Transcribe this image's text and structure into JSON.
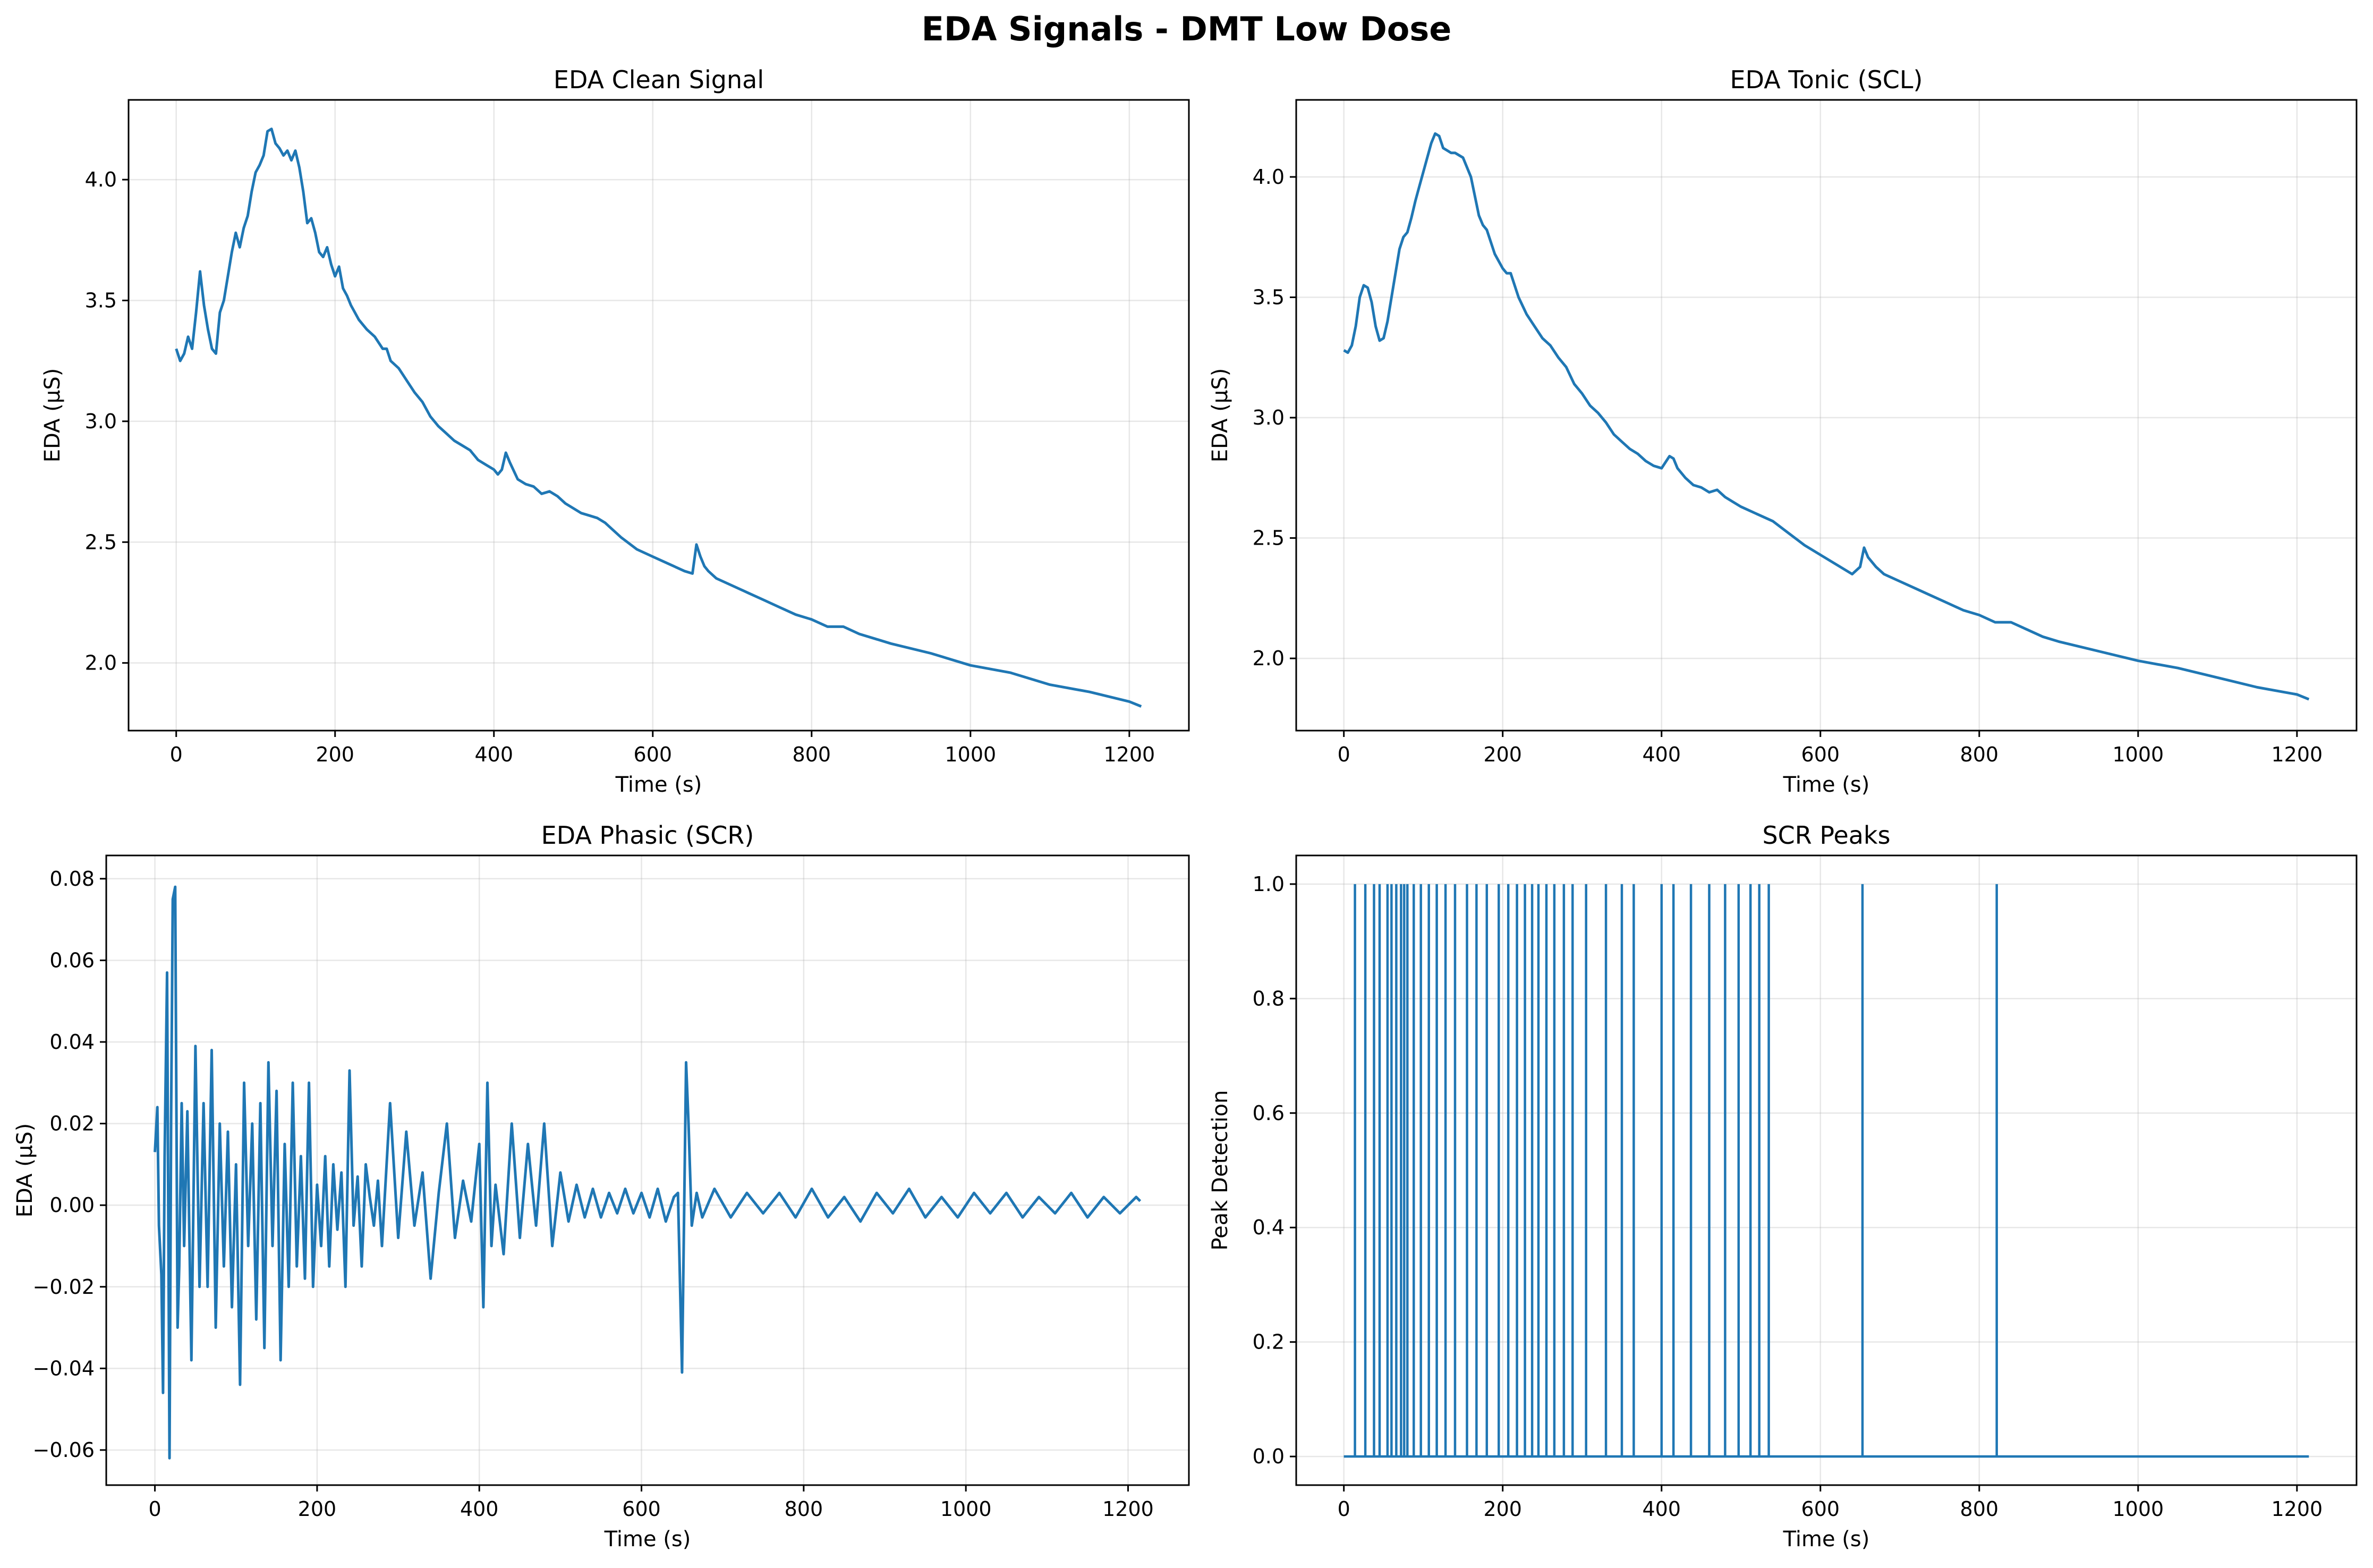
{
  "figure": {
    "suptitle": "EDA Signals - DMT Low Dose",
    "line_color": "#1f77b4"
  },
  "chart_data": [
    {
      "type": "line",
      "title": "EDA Clean Signal",
      "xlabel": "Time (s)",
      "ylabel": "EDA (µS)",
      "xlim": [
        -60,
        1275
      ],
      "ylim": [
        1.72,
        4.33
      ],
      "xticks": [
        0,
        200,
        400,
        600,
        800,
        1000,
        1200
      ],
      "yticks": [
        2.0,
        2.5,
        3.0,
        3.5,
        4.0
      ],
      "ytick_labels": [
        "2.0",
        "2.5",
        "3.0",
        "3.5",
        "4.0"
      ],
      "grid": true,
      "series": [
        {
          "x": [
            0,
            5,
            10,
            15,
            20,
            25,
            30,
            35,
            40,
            45,
            50,
            55,
            60,
            65,
            70,
            75,
            80,
            85,
            90,
            95,
            100,
            105,
            110,
            115,
            120,
            125,
            130,
            135,
            140,
            145,
            150,
            155,
            160,
            165,
            170,
            175,
            180,
            185,
            190,
            195,
            200,
            205,
            210,
            215,
            220,
            225,
            230,
            240,
            250,
            260,
            265,
            270,
            280,
            290,
            300,
            310,
            320,
            330,
            340,
            350,
            360,
            370,
            380,
            390,
            400,
            405,
            410,
            415,
            420,
            430,
            440,
            450,
            460,
            470,
            480,
            490,
            500,
            510,
            520,
            530,
            540,
            560,
            580,
            600,
            620,
            640,
            650,
            655,
            660,
            665,
            670,
            680,
            700,
            720,
            740,
            760,
            780,
            800,
            820,
            840,
            860,
            880,
            900,
            950,
            1000,
            1050,
            1100,
            1150,
            1200,
            1215
          ],
          "y": [
            3.3,
            3.25,
            3.28,
            3.35,
            3.3,
            3.45,
            3.62,
            3.48,
            3.38,
            3.3,
            3.28,
            3.45,
            3.5,
            3.6,
            3.7,
            3.78,
            3.72,
            3.8,
            3.85,
            3.95,
            4.03,
            4.06,
            4.1,
            4.2,
            4.21,
            4.15,
            4.13,
            4.1,
            4.12,
            4.08,
            4.12,
            4.05,
            3.95,
            3.82,
            3.84,
            3.78,
            3.7,
            3.68,
            3.72,
            3.65,
            3.6,
            3.64,
            3.55,
            3.52,
            3.48,
            3.45,
            3.42,
            3.38,
            3.35,
            3.3,
            3.3,
            3.25,
            3.22,
            3.17,
            3.12,
            3.08,
            3.02,
            2.98,
            2.95,
            2.92,
            2.9,
            2.88,
            2.84,
            2.82,
            2.8,
            2.78,
            2.8,
            2.87,
            2.83,
            2.76,
            2.74,
            2.73,
            2.7,
            2.71,
            2.69,
            2.66,
            2.64,
            2.62,
            2.61,
            2.6,
            2.58,
            2.52,
            2.47,
            2.44,
            2.41,
            2.38,
            2.37,
            2.49,
            2.44,
            2.4,
            2.38,
            2.35,
            2.32,
            2.29,
            2.26,
            2.23,
            2.2,
            2.18,
            2.15,
            2.15,
            2.12,
            2.1,
            2.08,
            2.04,
            1.99,
            1.96,
            1.91,
            1.88,
            1.84,
            1.82
          ]
        }
      ]
    },
    {
      "type": "line",
      "title": "EDA Tonic (SCL)",
      "xlabel": "Time (s)",
      "ylabel": "EDA (µS)",
      "xlim": [
        -60,
        1275
      ],
      "ylim": [
        1.7,
        4.32
      ],
      "xticks": [
        0,
        200,
        400,
        600,
        800,
        1000,
        1200
      ],
      "yticks": [
        2.0,
        2.5,
        3.0,
        3.5,
        4.0
      ],
      "ytick_labels": [
        "2.0",
        "2.5",
        "3.0",
        "3.5",
        "4.0"
      ],
      "grid": true,
      "series": [
        {
          "x": [
            0,
            5,
            10,
            15,
            20,
            25,
            30,
            35,
            40,
            45,
            50,
            55,
            60,
            65,
            70,
            75,
            80,
            85,
            90,
            95,
            100,
            105,
            110,
            115,
            120,
            125,
            130,
            135,
            140,
            150,
            160,
            165,
            170,
            175,
            180,
            190,
            200,
            205,
            210,
            220,
            230,
            240,
            250,
            260,
            270,
            280,
            290,
            300,
            310,
            320,
            330,
            340,
            350,
            360,
            370,
            380,
            390,
            400,
            410,
            415,
            420,
            430,
            440,
            450,
            460,
            470,
            480,
            490,
            500,
            520,
            540,
            560,
            580,
            600,
            620,
            640,
            650,
            655,
            660,
            670,
            680,
            700,
            720,
            740,
            760,
            780,
            800,
            820,
            840,
            860,
            880,
            900,
            950,
            1000,
            1050,
            1100,
            1150,
            1200,
            1215
          ],
          "y": [
            3.28,
            3.27,
            3.3,
            3.38,
            3.5,
            3.55,
            3.54,
            3.48,
            3.38,
            3.32,
            3.33,
            3.4,
            3.5,
            3.6,
            3.7,
            3.75,
            3.77,
            3.83,
            3.9,
            3.96,
            4.02,
            4.08,
            4.14,
            4.18,
            4.17,
            4.12,
            4.11,
            4.1,
            4.1,
            4.08,
            4.0,
            3.92,
            3.84,
            3.8,
            3.78,
            3.68,
            3.62,
            3.6,
            3.6,
            3.5,
            3.43,
            3.38,
            3.33,
            3.3,
            3.25,
            3.21,
            3.14,
            3.1,
            3.05,
            3.02,
            2.98,
            2.93,
            2.9,
            2.87,
            2.85,
            2.82,
            2.8,
            2.79,
            2.84,
            2.83,
            2.79,
            2.75,
            2.72,
            2.71,
            2.69,
            2.7,
            2.67,
            2.65,
            2.63,
            2.6,
            2.57,
            2.52,
            2.47,
            2.43,
            2.39,
            2.35,
            2.38,
            2.46,
            2.42,
            2.38,
            2.35,
            2.32,
            2.29,
            2.26,
            2.23,
            2.2,
            2.18,
            2.15,
            2.15,
            2.12,
            2.09,
            2.07,
            2.03,
            1.99,
            1.96,
            1.92,
            1.88,
            1.85,
            1.83
          ]
        }
      ]
    },
    {
      "type": "line",
      "title": "EDA Phasic (SCR)",
      "xlabel": "Time (s)",
      "ylabel": "EDA (µS)",
      "xlim": [
        -60,
        1275
      ],
      "ylim": [
        -0.0686,
        0.0857
      ],
      "xticks": [
        0,
        200,
        400,
        600,
        800,
        1000,
        1200
      ],
      "yticks": [
        -0.06,
        -0.04,
        -0.02,
        0.0,
        0.02,
        0.04,
        0.06,
        0.08
      ],
      "ytick_labels": [
        "−0.06",
        "−0.04",
        "−0.02",
        "0.00",
        "0.02",
        "0.04",
        "0.06",
        "0.08"
      ],
      "grid": true,
      "series": [
        {
          "x": [
            0,
            3,
            5,
            8,
            10,
            12,
            15,
            18,
            20,
            22,
            25,
            28,
            30,
            33,
            36,
            40,
            45,
            50,
            55,
            60,
            65,
            70,
            75,
            80,
            85,
            90,
            95,
            100,
            105,
            110,
            115,
            120,
            125,
            130,
            135,
            140,
            145,
            150,
            155,
            160,
            165,
            170,
            175,
            180,
            185,
            190,
            195,
            200,
            205,
            210,
            215,
            220,
            225,
            230,
            235,
            240,
            245,
            250,
            255,
            260,
            265,
            270,
            275,
            280,
            290,
            300,
            310,
            320,
            330,
            340,
            350,
            360,
            370,
            380,
            390,
            400,
            405,
            410,
            415,
            420,
            430,
            440,
            450,
            460,
            470,
            480,
            490,
            500,
            510,
            520,
            530,
            540,
            550,
            560,
            570,
            580,
            590,
            600,
            610,
            620,
            630,
            640,
            645,
            650,
            655,
            658,
            662,
            668,
            675,
            690,
            710,
            730,
            750,
            770,
            790,
            810,
            830,
            850,
            870,
            890,
            910,
            930,
            950,
            970,
            990,
            1010,
            1030,
            1050,
            1070,
            1090,
            1110,
            1130,
            1150,
            1170,
            1190,
            1210,
            1215
          ],
          "y": [
            0.013,
            0.024,
            -0.005,
            -0.017,
            -0.046,
            0.012,
            0.057,
            -0.062,
            0.021,
            0.075,
            0.078,
            -0.03,
            -0.015,
            0.025,
            -0.01,
            0.023,
            -0.038,
            0.039,
            -0.02,
            0.025,
            -0.02,
            0.038,
            -0.03,
            0.02,
            -0.015,
            0.018,
            -0.025,
            0.01,
            -0.044,
            0.03,
            -0.01,
            0.02,
            -0.028,
            0.025,
            -0.035,
            0.035,
            -0.01,
            0.028,
            -0.038,
            0.015,
            -0.02,
            0.03,
            -0.015,
            0.012,
            -0.018,
            0.03,
            -0.02,
            0.005,
            -0.01,
            0.012,
            -0.015,
            0.01,
            -0.006,
            0.008,
            -0.02,
            0.033,
            -0.005,
            0.007,
            -0.015,
            0.01,
            0.002,
            -0.005,
            0.006,
            -0.01,
            0.025,
            -0.008,
            0.018,
            -0.005,
            0.008,
            -0.018,
            0.003,
            0.02,
            -0.008,
            0.006,
            -0.004,
            0.015,
            -0.025,
            0.03,
            -0.01,
            0.005,
            -0.012,
            0.02,
            -0.008,
            0.015,
            -0.005,
            0.02,
            -0.01,
            0.008,
            -0.004,
            0.005,
            -0.003,
            0.004,
            -0.003,
            0.003,
            -0.002,
            0.004,
            -0.002,
            0.003,
            -0.003,
            0.004,
            -0.004,
            0.002,
            0.003,
            -0.041,
            0.035,
            0.02,
            -0.005,
            0.003,
            -0.003,
            0.004,
            -0.003,
            0.003,
            -0.002,
            0.003,
            -0.003,
            0.004,
            -0.003,
            0.002,
            -0.004,
            0.003,
            -0.002,
            0.004,
            -0.003,
            0.002,
            -0.003,
            0.003,
            -0.002,
            0.003,
            -0.003,
            0.002,
            -0.002,
            0.003,
            -0.003,
            0.002,
            -0.002,
            0.002,
            0.001
          ]
        }
      ]
    },
    {
      "type": "line",
      "title": "SCR Peaks",
      "xlabel": "Time (s)",
      "ylabel": "Peak Detection",
      "xlim": [
        -60,
        1275
      ],
      "ylim": [
        -0.05,
        1.05
      ],
      "xticks": [
        0,
        200,
        400,
        600,
        800,
        1000,
        1200
      ],
      "yticks": [
        0.0,
        0.2,
        0.4,
        0.6,
        0.8,
        1.0
      ],
      "ytick_labels": [
        "0.0",
        "0.2",
        "0.4",
        "0.6",
        "0.8",
        "1.0"
      ],
      "grid": true,
      "x_end": 1215,
      "peak_times": [
        14,
        27,
        38,
        45,
        55,
        60,
        66,
        72,
        76,
        80,
        88,
        97,
        107,
        117,
        128,
        140,
        155,
        167,
        180,
        195,
        207,
        218,
        228,
        237,
        245,
        255,
        265,
        277,
        288,
        305,
        330,
        350,
        365,
        400,
        415,
        437,
        460,
        480,
        497,
        512,
        523,
        535,
        653,
        822
      ]
    }
  ]
}
